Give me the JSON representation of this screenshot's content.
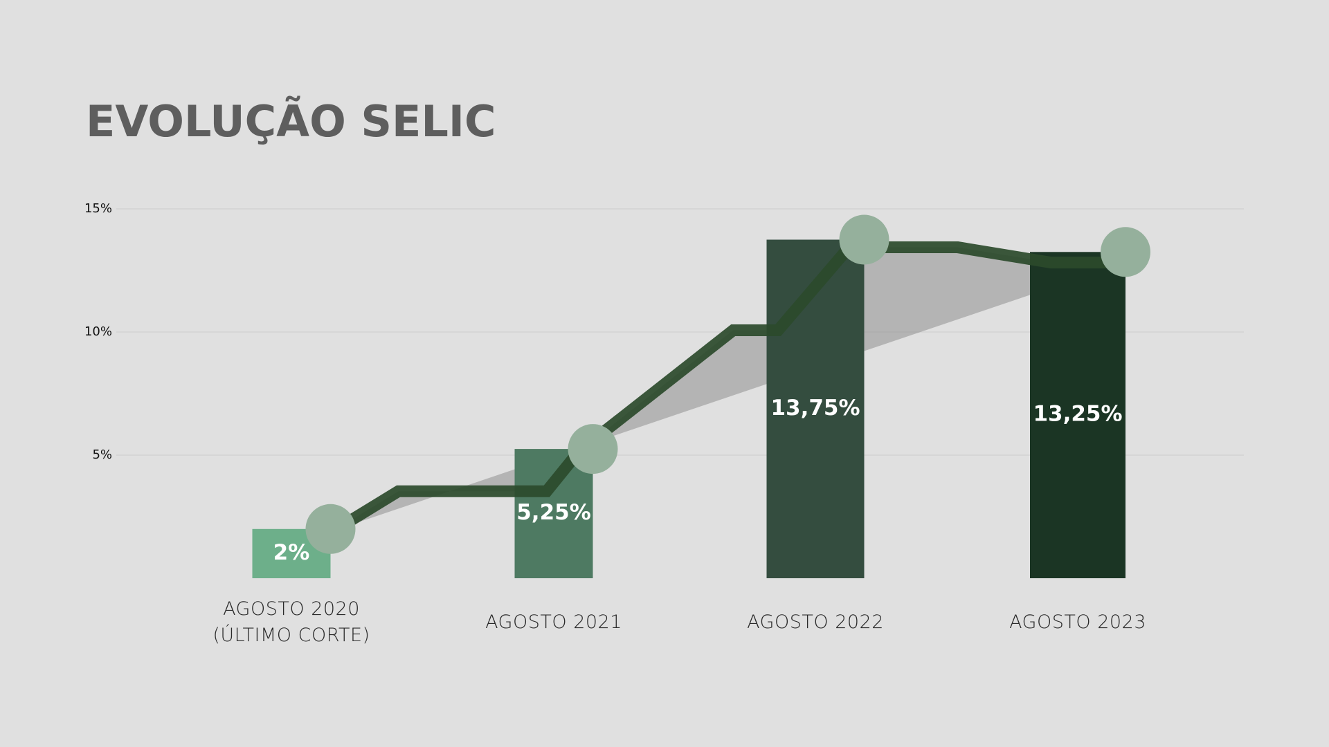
{
  "chart_data": {
    "type": "bar",
    "title": "EVOLUÇÃO SELIC",
    "categories": [
      "AGOSTO 2020 (ÚLTIMO CORTE)",
      "AGOSTO 2021",
      "AGOSTO 2022",
      "AGOSTO 2023"
    ],
    "values": [
      2,
      5.25,
      13.75,
      13.25
    ],
    "value_labels": [
      "2%",
      "5,25%",
      "13,75%",
      "13,25%"
    ],
    "colors": [
      "#6daf8a",
      "#4e7a62",
      "#344d3f",
      "#1b3524"
    ],
    "marker_color": "#95b09c",
    "ylim": [
      0,
      15
    ],
    "yticks": [
      {
        "value": 5,
        "label": "5%"
      },
      {
        "value": 10,
        "label": "10%"
      },
      {
        "value": 15,
        "label": "15%"
      }
    ],
    "grid": true
  }
}
